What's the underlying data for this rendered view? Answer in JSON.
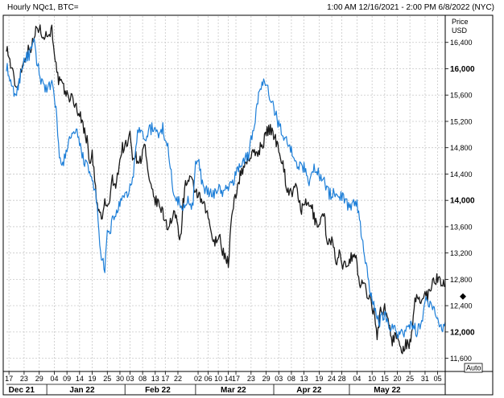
{
  "header": {
    "title": "Hourly NQc1, BTC=",
    "range": "1:00 AM 12/16/2021 - 2:00 PM 6/8/2022 (NYC)"
  },
  "axis": {
    "unit_top": "Price",
    "unit_bottom": "USD",
    "auto_label": "Auto"
  },
  "colors": {
    "nq": "#1a1a1a",
    "btc": "#1e7fd8",
    "grid": "#c8c8c8",
    "frame": "#000000"
  },
  "chart_data": {
    "type": "line",
    "ylim": [
      11400,
      16800
    ],
    "yticks": [
      11600,
      12000,
      12400,
      12800,
      13200,
      13600,
      14000,
      14400,
      14800,
      15200,
      15600,
      16000,
      16400
    ],
    "ytick_labels": [
      "11,600",
      "12,000",
      "12,400",
      "12,800",
      "13,200",
      "13,600",
      "14,000",
      "14,400",
      "14,800",
      "15,200",
      "15,600",
      "16,000",
      "16,400"
    ],
    "xlim": [
      "2021-12-16",
      "2022-06-08"
    ],
    "x_day_labels": [
      {
        "date": "2021-12-17",
        "label": "17"
      },
      {
        "date": "2021-12-23",
        "label": "23"
      },
      {
        "date": "2021-12-29",
        "label": "29"
      },
      {
        "date": "2022-01-04",
        "label": "04"
      },
      {
        "date": "2022-01-09",
        "label": "09"
      },
      {
        "date": "2022-01-14",
        "label": "14"
      },
      {
        "date": "2022-01-19",
        "label": "19"
      },
      {
        "date": "2022-01-25",
        "label": "25"
      },
      {
        "date": "2022-01-30",
        "label": "30"
      },
      {
        "date": "2022-02-03",
        "label": "03"
      },
      {
        "date": "2022-02-08",
        "label": "08"
      },
      {
        "date": "2022-02-13",
        "label": "13"
      },
      {
        "date": "2022-02-17",
        "label": "17"
      },
      {
        "date": "2022-02-22",
        "label": "22"
      },
      {
        "date": "2022-03-02",
        "label": "02"
      },
      {
        "date": "2022-03-06",
        "label": "06"
      },
      {
        "date": "2022-03-10",
        "label": "10"
      },
      {
        "date": "2022-03-14",
        "label": "14"
      },
      {
        "date": "2022-03-17",
        "label": "17"
      },
      {
        "date": "2022-03-23",
        "label": "23"
      },
      {
        "date": "2022-03-29",
        "label": "29"
      },
      {
        "date": "2022-04-03",
        "label": "03"
      },
      {
        "date": "2022-04-08",
        "label": "08"
      },
      {
        "date": "2022-04-13",
        "label": "13"
      },
      {
        "date": "2022-04-19",
        "label": "19"
      },
      {
        "date": "2022-04-24",
        "label": "24"
      },
      {
        "date": "2022-04-28",
        "label": "28"
      },
      {
        "date": "2022-05-04",
        "label": "04"
      },
      {
        "date": "2022-05-10",
        "label": "10"
      },
      {
        "date": "2022-05-15",
        "label": "15"
      },
      {
        "date": "2022-05-20",
        "label": "20"
      },
      {
        "date": "2022-05-25",
        "label": "25"
      },
      {
        "date": "2022-05-31",
        "label": "31"
      },
      {
        "date": "2022-06-05",
        "label": "05"
      }
    ],
    "x_month_labels": [
      {
        "date": "2021-12-22",
        "label": "Dec 21"
      },
      {
        "date": "2022-01-15",
        "label": "Jan 22"
      },
      {
        "date": "2022-02-14",
        "label": "Feb 22"
      },
      {
        "date": "2022-03-16",
        "label": "Mar 22"
      },
      {
        "date": "2022-04-15",
        "label": "Apr 22"
      },
      {
        "date": "2022-05-16",
        "label": "May 22"
      }
    ],
    "x_month_dividers": [
      "2022-01-01",
      "2022-02-01",
      "2022-03-01",
      "2022-04-01",
      "2022-05-01"
    ],
    "last_value_marker": 12540,
    "grid": true,
    "series": [
      {
        "key": "nq",
        "x": [
          "2021-12-16",
          "2021-12-18",
          "2021-12-20",
          "2021-12-22",
          "2021-12-24",
          "2021-12-26",
          "2021-12-27",
          "2021-12-28",
          "2021-12-30",
          "2022-01-01",
          "2022-01-03",
          "2022-01-04",
          "2022-01-05",
          "2022-01-06",
          "2022-01-07",
          "2022-01-09",
          "2022-01-11",
          "2022-01-13",
          "2022-01-15",
          "2022-01-17",
          "2022-01-18",
          "2022-01-19",
          "2022-01-20",
          "2022-01-21",
          "2022-01-23",
          "2022-01-24",
          "2022-01-25",
          "2022-01-26",
          "2022-01-27",
          "2022-01-28",
          "2022-01-30",
          "2022-01-31",
          "2022-02-02",
          "2022-02-03",
          "2022-02-04",
          "2022-02-07",
          "2022-02-09",
          "2022-02-10",
          "2022-02-11",
          "2022-02-13",
          "2022-02-15",
          "2022-02-17",
          "2022-02-18",
          "2022-02-21",
          "2022-02-23",
          "2022-02-24",
          "2022-02-25",
          "2022-02-27",
          "2022-03-01",
          "2022-03-03",
          "2022-03-05",
          "2022-03-07",
          "2022-03-08",
          "2022-03-10",
          "2022-03-12",
          "2022-03-14",
          "2022-03-15",
          "2022-03-16",
          "2022-03-18",
          "2022-03-20",
          "2022-03-22",
          "2022-03-24",
          "2022-03-26",
          "2022-03-28",
          "2022-03-30",
          "2022-04-01",
          "2022-04-03",
          "2022-04-05",
          "2022-04-06",
          "2022-04-08",
          "2022-04-10",
          "2022-04-12",
          "2022-04-14",
          "2022-04-16",
          "2022-04-18",
          "2022-04-20",
          "2022-04-21",
          "2022-04-22",
          "2022-04-24",
          "2022-04-26",
          "2022-04-27",
          "2022-04-28",
          "2022-04-29",
          "2022-05-01",
          "2022-05-03",
          "2022-05-04",
          "2022-05-05",
          "2022-05-06",
          "2022-05-08",
          "2022-05-09",
          "2022-05-11",
          "2022-05-12",
          "2022-05-13",
          "2022-05-15",
          "2022-05-17",
          "2022-05-18",
          "2022-05-19",
          "2022-05-20",
          "2022-05-22",
          "2022-05-24",
          "2022-05-25",
          "2022-05-26",
          "2022-05-27",
          "2022-05-30",
          "2022-05-31",
          "2022-06-01",
          "2022-06-02",
          "2022-06-03",
          "2022-06-06",
          "2022-06-07",
          "2022-06-08"
        ],
        "values": [
          16350,
          16000,
          15700,
          16000,
          16250,
          16350,
          16450,
          16650,
          16550,
          16500,
          16600,
          16300,
          15900,
          15800,
          15750,
          15600,
          15550,
          15400,
          15200,
          14900,
          14600,
          14700,
          14300,
          13900,
          13700,
          14000,
          13850,
          14050,
          14300,
          14200,
          14600,
          14800,
          14850,
          15000,
          14700,
          14600,
          14850,
          14400,
          14200,
          14000,
          13900,
          13700,
          13600,
          13800,
          13400,
          13950,
          14250,
          14300,
          14150,
          14000,
          13850,
          13600,
          13300,
          13500,
          13200,
          13050,
          13600,
          13900,
          14300,
          14500,
          14650,
          14700,
          14750,
          14900,
          15100,
          15000,
          14800,
          14500,
          14200,
          14100,
          14200,
          13850,
          13950,
          13900,
          13600,
          13750,
          13800,
          13400,
          13400,
          13000,
          13250,
          12950,
          13000,
          13100,
          13200,
          13050,
          12650,
          12800,
          12600,
          12550,
          12250,
          11850,
          12300,
          12350,
          12100,
          11850,
          11950,
          11900,
          11750,
          11850,
          11800,
          12000,
          12500,
          12500,
          12600,
          12550,
          12650,
          12800,
          12800,
          12750,
          12700
        ]
      },
      {
        "key": "btc",
        "x": [
          "2021-12-16",
          "2021-12-18",
          "2021-12-20",
          "2021-12-22",
          "2021-12-23",
          "2021-12-25",
          "2021-12-27",
          "2021-12-28",
          "2021-12-30",
          "2022-01-01",
          "2022-01-03",
          "2022-01-05",
          "2022-01-06",
          "2022-01-07",
          "2022-01-09",
          "2022-01-11",
          "2022-01-13",
          "2022-01-15",
          "2022-01-17",
          "2022-01-19",
          "2022-01-20",
          "2022-01-21",
          "2022-01-22",
          "2022-01-24",
          "2022-01-25",
          "2022-01-26",
          "2022-01-27",
          "2022-01-29",
          "2022-01-31",
          "2022-02-02",
          "2022-02-04",
          "2022-02-06",
          "2022-02-07",
          "2022-02-09",
          "2022-02-10",
          "2022-02-12",
          "2022-02-14",
          "2022-02-16",
          "2022-02-18",
          "2022-02-20",
          "2022-02-22",
          "2022-02-24",
          "2022-02-26",
          "2022-02-28",
          "2022-03-01",
          "2022-03-02",
          "2022-03-04",
          "2022-03-06",
          "2022-03-08",
          "2022-03-10",
          "2022-03-12",
          "2022-03-14",
          "2022-03-16",
          "2022-03-18",
          "2022-03-20",
          "2022-03-22",
          "2022-03-24",
          "2022-03-26",
          "2022-03-27",
          "2022-03-28",
          "2022-03-29",
          "2022-03-30",
          "2022-04-01",
          "2022-04-03",
          "2022-04-05",
          "2022-04-07",
          "2022-04-09",
          "2022-04-11",
          "2022-04-13",
          "2022-04-15",
          "2022-04-17",
          "2022-04-19",
          "2022-04-21",
          "2022-04-23",
          "2022-04-25",
          "2022-04-27",
          "2022-04-29",
          "2022-05-01",
          "2022-05-03",
          "2022-05-04",
          "2022-05-05",
          "2022-05-06",
          "2022-05-07",
          "2022-05-09",
          "2022-05-10",
          "2022-05-11",
          "2022-05-12",
          "2022-05-13",
          "2022-05-15",
          "2022-05-17",
          "2022-05-19",
          "2022-05-21",
          "2022-05-23",
          "2022-05-25",
          "2022-05-27",
          "2022-05-28",
          "2022-05-30",
          "2022-05-31",
          "2022-06-01",
          "2022-06-03",
          "2022-06-05",
          "2022-06-07",
          "2022-06-08"
        ],
        "values": [
          16050,
          15700,
          15600,
          16000,
          16150,
          16200,
          16400,
          16100,
          15800,
          15700,
          15750,
          15300,
          14600,
          14500,
          14800,
          15000,
          15000,
          14700,
          14500,
          14300,
          14200,
          13850,
          13300,
          12900,
          13500,
          13500,
          13700,
          13850,
          14000,
          14100,
          14300,
          15000,
          15100,
          14900,
          15050,
          15100,
          15000,
          15100,
          14800,
          14200,
          14000,
          13850,
          14050,
          13900,
          14600,
          14600,
          14200,
          14100,
          14100,
          14200,
          14100,
          14200,
          14300,
          14500,
          14600,
          14700,
          15100,
          15600,
          15700,
          15800,
          15700,
          15650,
          15400,
          15150,
          15000,
          14800,
          14700,
          14500,
          14500,
          14300,
          14500,
          14400,
          14300,
          14100,
          14100,
          14100,
          14000,
          13900,
          13950,
          14000,
          13700,
          13400,
          13200,
          12700,
          12500,
          12400,
          12200,
          12150,
          12300,
          12100,
          12050,
          11950,
          12000,
          12100,
          12050,
          12000,
          12200,
          12500,
          12450,
          12350,
          12200,
          12050,
          12150
        ]
      }
    ]
  }
}
